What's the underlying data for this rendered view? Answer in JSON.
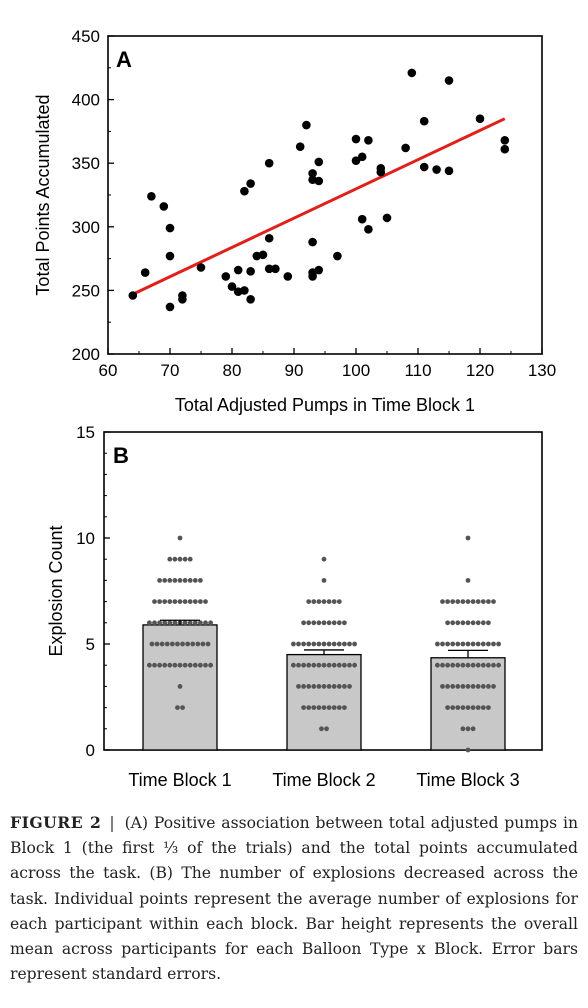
{
  "chart_data": [
    {
      "panel": "A",
      "type": "scatter",
      "xlabel": "Total Adjusted Pumps in Time Block 1",
      "ylabel": "Total Points Accumulated",
      "xlim": [
        60,
        130
      ],
      "ylim": [
        200,
        450
      ],
      "xticks": [
        60,
        70,
        80,
        90,
        100,
        110,
        120,
        130
      ],
      "yticks": [
        200,
        250,
        300,
        350,
        400,
        450
      ],
      "grid": false,
      "point_color": "#000000",
      "line_color": "#e0201b",
      "regression_line": {
        "x": [
          64,
          124
        ],
        "y": [
          247,
          385
        ]
      },
      "points": [
        [
          64,
          246
        ],
        [
          66,
          264
        ],
        [
          67,
          324
        ],
        [
          69,
          316
        ],
        [
          70,
          299
        ],
        [
          70,
          277
        ],
        [
          70,
          237
        ],
        [
          72,
          246
        ],
        [
          72,
          243
        ],
        [
          75,
          268
        ],
        [
          79,
          261
        ],
        [
          80,
          253
        ],
        [
          81,
          266
        ],
        [
          81,
          249
        ],
        [
          82,
          250
        ],
        [
          82,
          328
        ],
        [
          83,
          334
        ],
        [
          83,
          243
        ],
        [
          83,
          265
        ],
        [
          84,
          277
        ],
        [
          85,
          278
        ],
        [
          86,
          350
        ],
        [
          86,
          291
        ],
        [
          86,
          267
        ],
        [
          87,
          267
        ],
        [
          89,
          261
        ],
        [
          91,
          363
        ],
        [
          92,
          380
        ],
        [
          93,
          342
        ],
        [
          93,
          337
        ],
        [
          93,
          288
        ],
        [
          93,
          264
        ],
        [
          93,
          261
        ],
        [
          94,
          351
        ],
        [
          94,
          336
        ],
        [
          94,
          266
        ],
        [
          97,
          277
        ],
        [
          100,
          369
        ],
        [
          100,
          352
        ],
        [
          101,
          355
        ],
        [
          101,
          306
        ],
        [
          102,
          368
        ],
        [
          102,
          298
        ],
        [
          104,
          346
        ],
        [
          104,
          343
        ],
        [
          105,
          307
        ],
        [
          108,
          362
        ],
        [
          109,
          421
        ],
        [
          111,
          383
        ],
        [
          111,
          347
        ],
        [
          113,
          345
        ],
        [
          115,
          415
        ],
        [
          115,
          344
        ],
        [
          120,
          385
        ],
        [
          124,
          368
        ],
        [
          124,
          361
        ]
      ]
    },
    {
      "panel": "B",
      "type": "bar",
      "ylabel": "Explosion Count",
      "ylim": [
        0,
        15
      ],
      "yticks": [
        0,
        5,
        10,
        15
      ],
      "categories": [
        "Time Block 1",
        "Time Block 2",
        "Time Block 3"
      ],
      "values": [
        5.9,
        4.5,
        4.35
      ],
      "errors": [
        0.22,
        0.22,
        0.35
      ],
      "bar_color": "#c8c8c8",
      "dot_color": "#555555",
      "dots": [
        {
          "10": 1,
          "9": 5,
          "8": 9,
          "7": 11,
          "6": 13,
          "5": 12,
          "4": 13,
          "3": 1,
          "2": 2
        },
        {
          "9": 1,
          "8": 1,
          "7": 7,
          "6": 9,
          "5": 13,
          "4": 13,
          "3": 11,
          "2": 9,
          "1": 2
        },
        {
          "10": 1,
          "8": 1,
          "7": 11,
          "6": 9,
          "5": 13,
          "4": 13,
          "3": 11,
          "2": 9,
          "1": 3,
          "0": 1
        }
      ]
    }
  ],
  "caption": {
    "label": "FIGURE 2",
    "separator": "|",
    "text": "(A) Positive association between total adjusted pumps in Block 1 (the first ⅓ of the trials) and the total points accumulated across the task. (B) The number of explosions decreased across the task. Individual points represent the average number of explosions for each participant within each block. Bar height represents the overall mean across participants for each Balloon Type x Block. Error bars represent standard errors."
  }
}
